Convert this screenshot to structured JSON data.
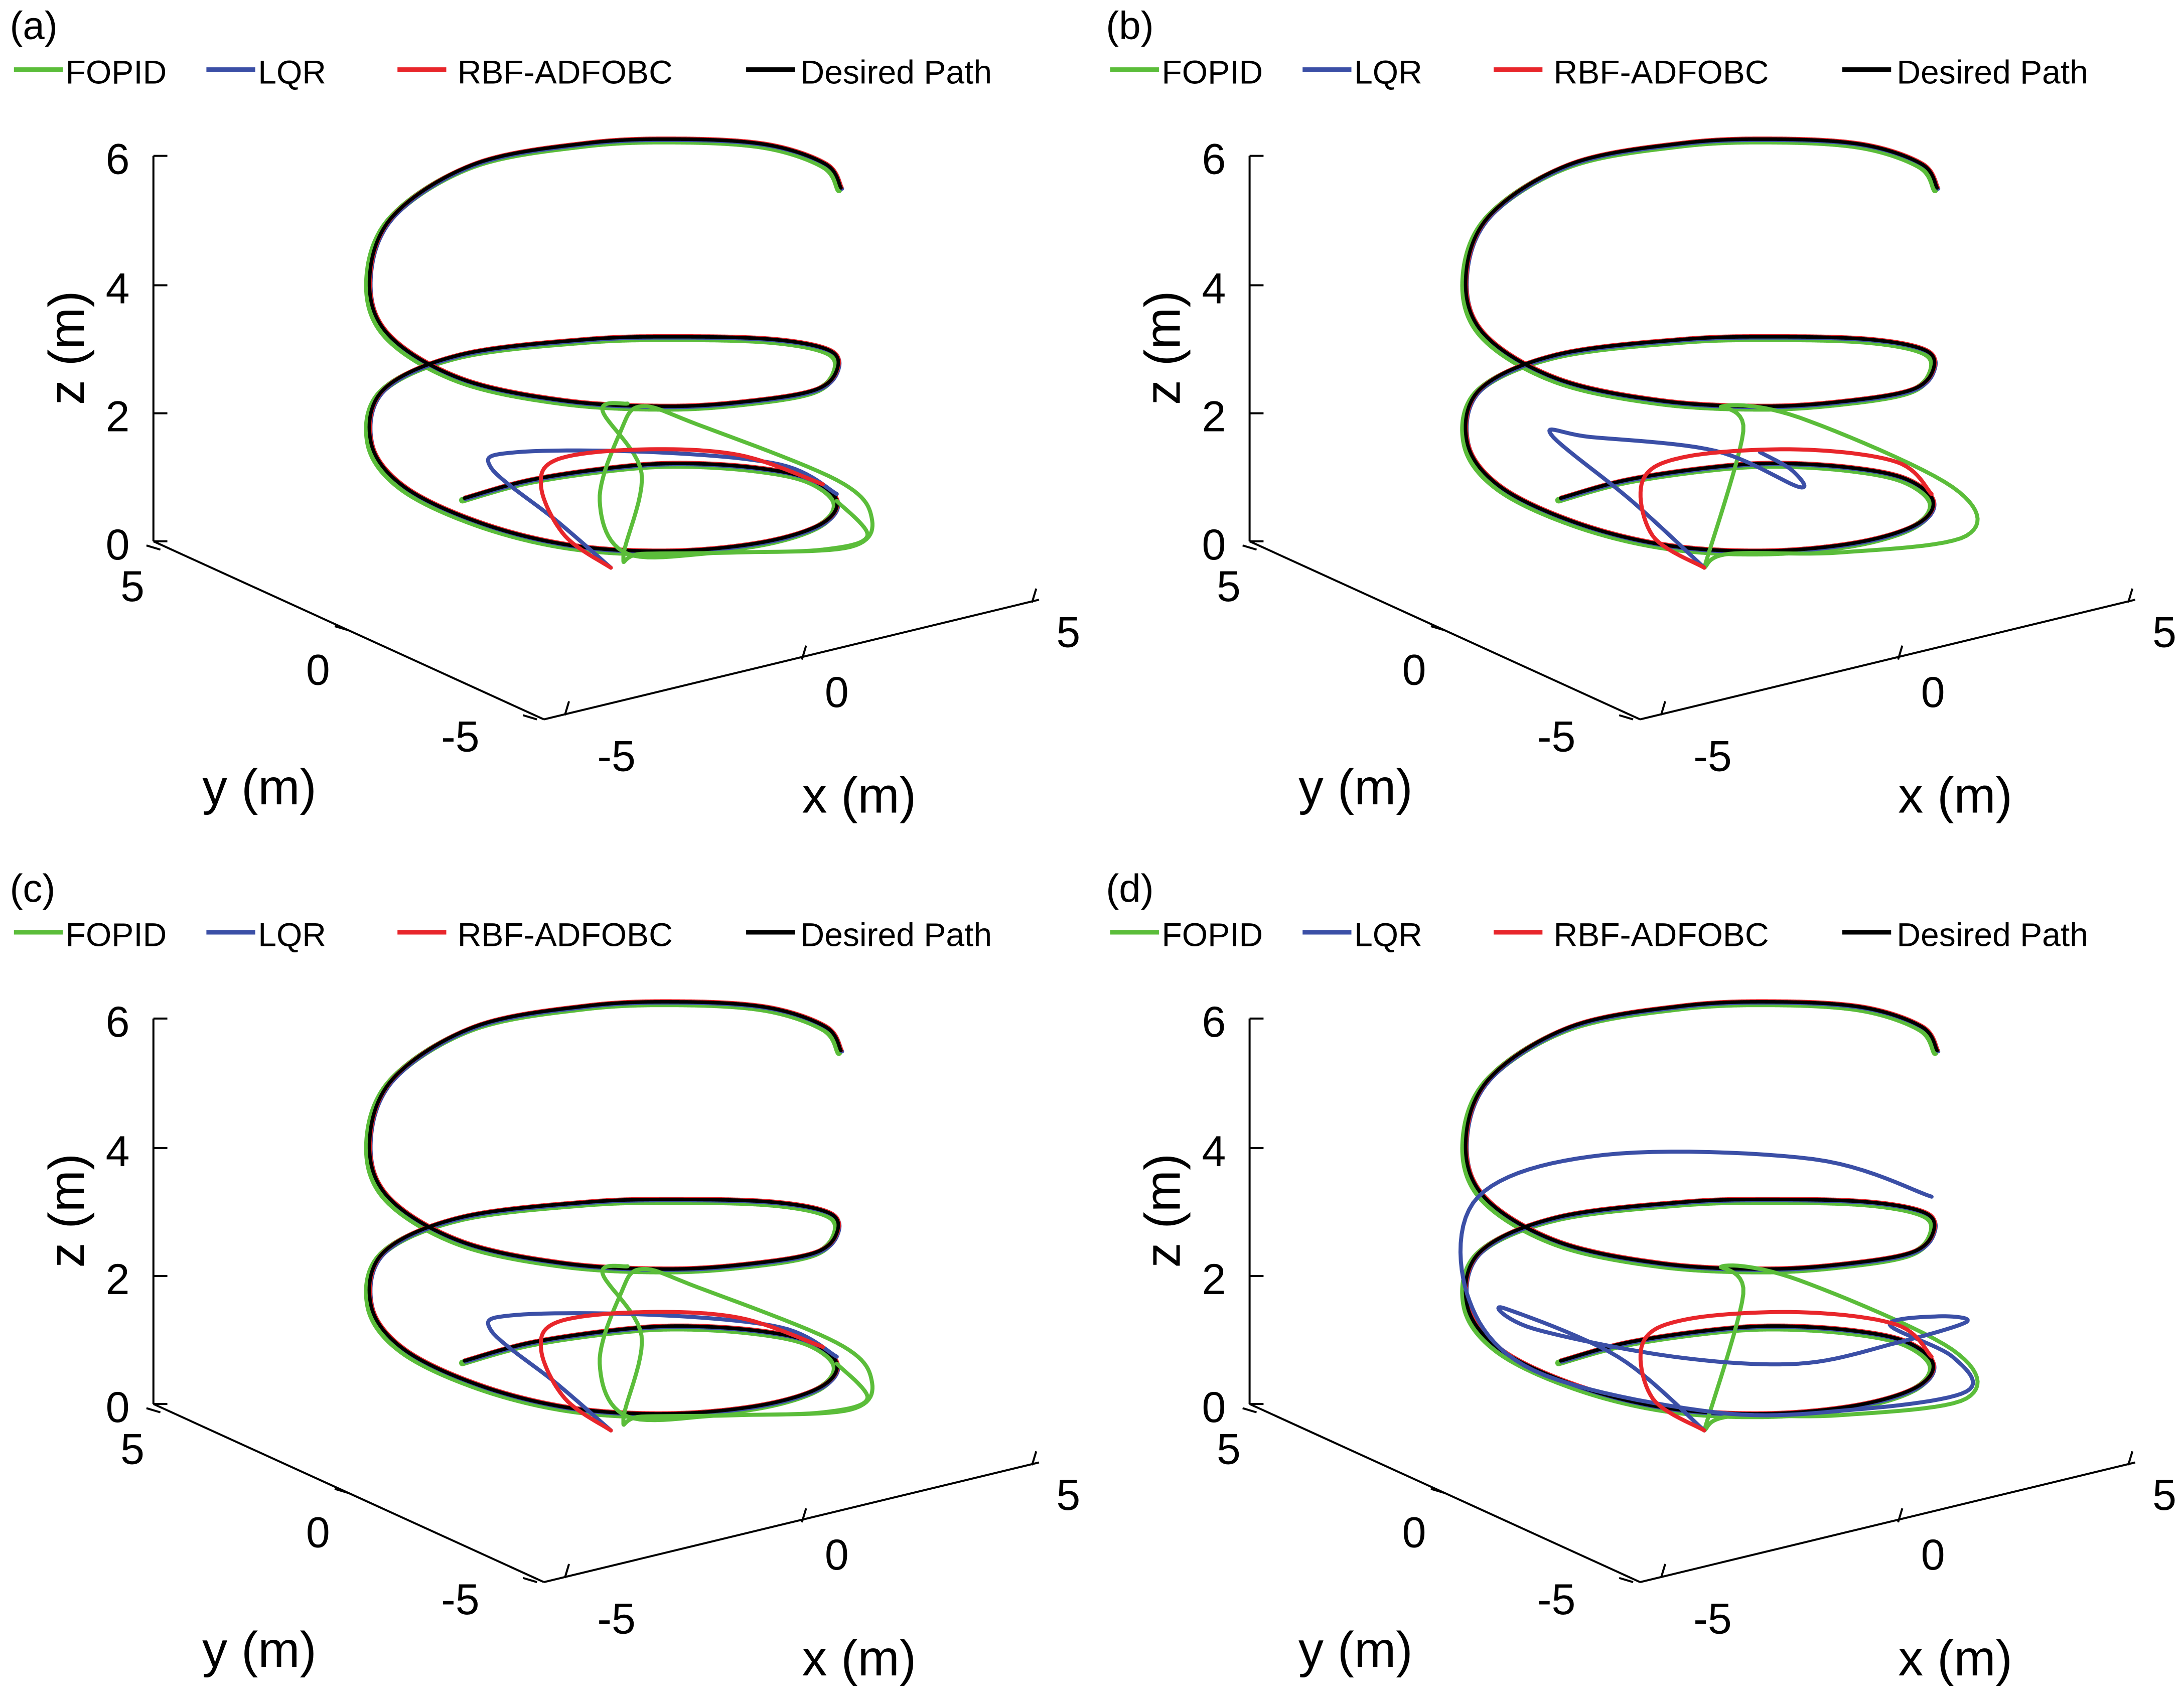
{
  "figure": {
    "panels": [
      {
        "letter": "(a)",
        "variant": "a"
      },
      {
        "letter": "(b)",
        "variant": "b"
      },
      {
        "letter": "(c)",
        "variant": "c"
      },
      {
        "letter": "(d)",
        "variant": "d"
      }
    ]
  },
  "legend": [
    {
      "label": "FOPID",
      "color": "#5bbd3a"
    },
    {
      "label": "LQR",
      "color": "#3b4fa6"
    },
    {
      "label": "RBF-ADFOBC",
      "color": "#e8262b"
    },
    {
      "label": "Desired Path",
      "color": "#000000"
    }
  ],
  "axes": {
    "xlabel": "x (m)",
    "ylabel": "y (m)",
    "zlabel": "z (m)",
    "x_ticks": [
      "-5",
      "0",
      "5"
    ],
    "y_ticks": [
      "-5",
      "0",
      "5"
    ],
    "z_ticks": [
      "0",
      "2",
      "4",
      "6"
    ]
  },
  "chart_data": [
    {
      "type": "line",
      "title": "(a)",
      "projection": "3d",
      "xlabel": "x (m)",
      "ylabel": "y (m)",
      "zlabel": "z (m)",
      "xlim": [
        -5,
        5
      ],
      "ylim": [
        -5,
        5
      ],
      "zlim": [
        0,
        6
      ],
      "series": [
        {
          "name": "Desired Path",
          "color": "#000000",
          "description": "helix radius 5 m, z from 0.6 to 5.9 m, 2.3 turns"
        },
        {
          "name": "RBF-ADFOBC",
          "color": "#e8262b",
          "description": "converges to desired path within first turn"
        },
        {
          "name": "LQR",
          "color": "#3b4fa6",
          "description": "converges to desired path within first turn"
        },
        {
          "name": "FOPID",
          "color": "#5bbd3a",
          "description": "large initial loop reaching z ≈ 2.1 m, then converges"
        }
      ]
    },
    {
      "type": "line",
      "title": "(b)",
      "projection": "3d",
      "xlabel": "x (m)",
      "ylabel": "y (m)",
      "zlabel": "z (m)",
      "xlim": [
        -5,
        5
      ],
      "ylim": [
        -5,
        5
      ],
      "zlim": [
        0,
        6
      ],
      "series": [
        {
          "name": "Desired Path",
          "color": "#000000"
        },
        {
          "name": "RBF-ADFOBC",
          "color": "#e8262b"
        },
        {
          "name": "LQR",
          "color": "#3b4fa6",
          "description": "initial transient path differs from (a)"
        },
        {
          "name": "FOPID",
          "color": "#5bbd3a"
        }
      ]
    },
    {
      "type": "line",
      "title": "(c)",
      "projection": "3d",
      "xlabel": "x (m)",
      "ylabel": "y (m)",
      "zlabel": "z (m)",
      "xlim": [
        -5,
        5
      ],
      "ylim": [
        -5,
        5
      ],
      "zlim": [
        0,
        6
      ],
      "series": [
        {
          "name": "Desired Path",
          "color": "#000000"
        },
        {
          "name": "RBF-ADFOBC",
          "color": "#e8262b"
        },
        {
          "name": "LQR",
          "color": "#3b4fa6"
        },
        {
          "name": "FOPID",
          "color": "#5bbd3a"
        }
      ]
    },
    {
      "type": "line",
      "title": "(d)",
      "projection": "3d",
      "xlabel": "x (m)",
      "ylabel": "y (m)",
      "zlabel": "z (m)",
      "xlim": [
        -5,
        5
      ],
      "ylim": [
        -5,
        5
      ],
      "zlim": [
        0,
        6
      ],
      "series": [
        {
          "name": "Desired Path",
          "color": "#000000"
        },
        {
          "name": "RBF-ADFOBC",
          "color": "#e8262b"
        },
        {
          "name": "LQR",
          "color": "#3b4fa6",
          "description": "larger deviation during first two turns"
        },
        {
          "name": "FOPID",
          "color": "#5bbd3a"
        }
      ]
    }
  ]
}
